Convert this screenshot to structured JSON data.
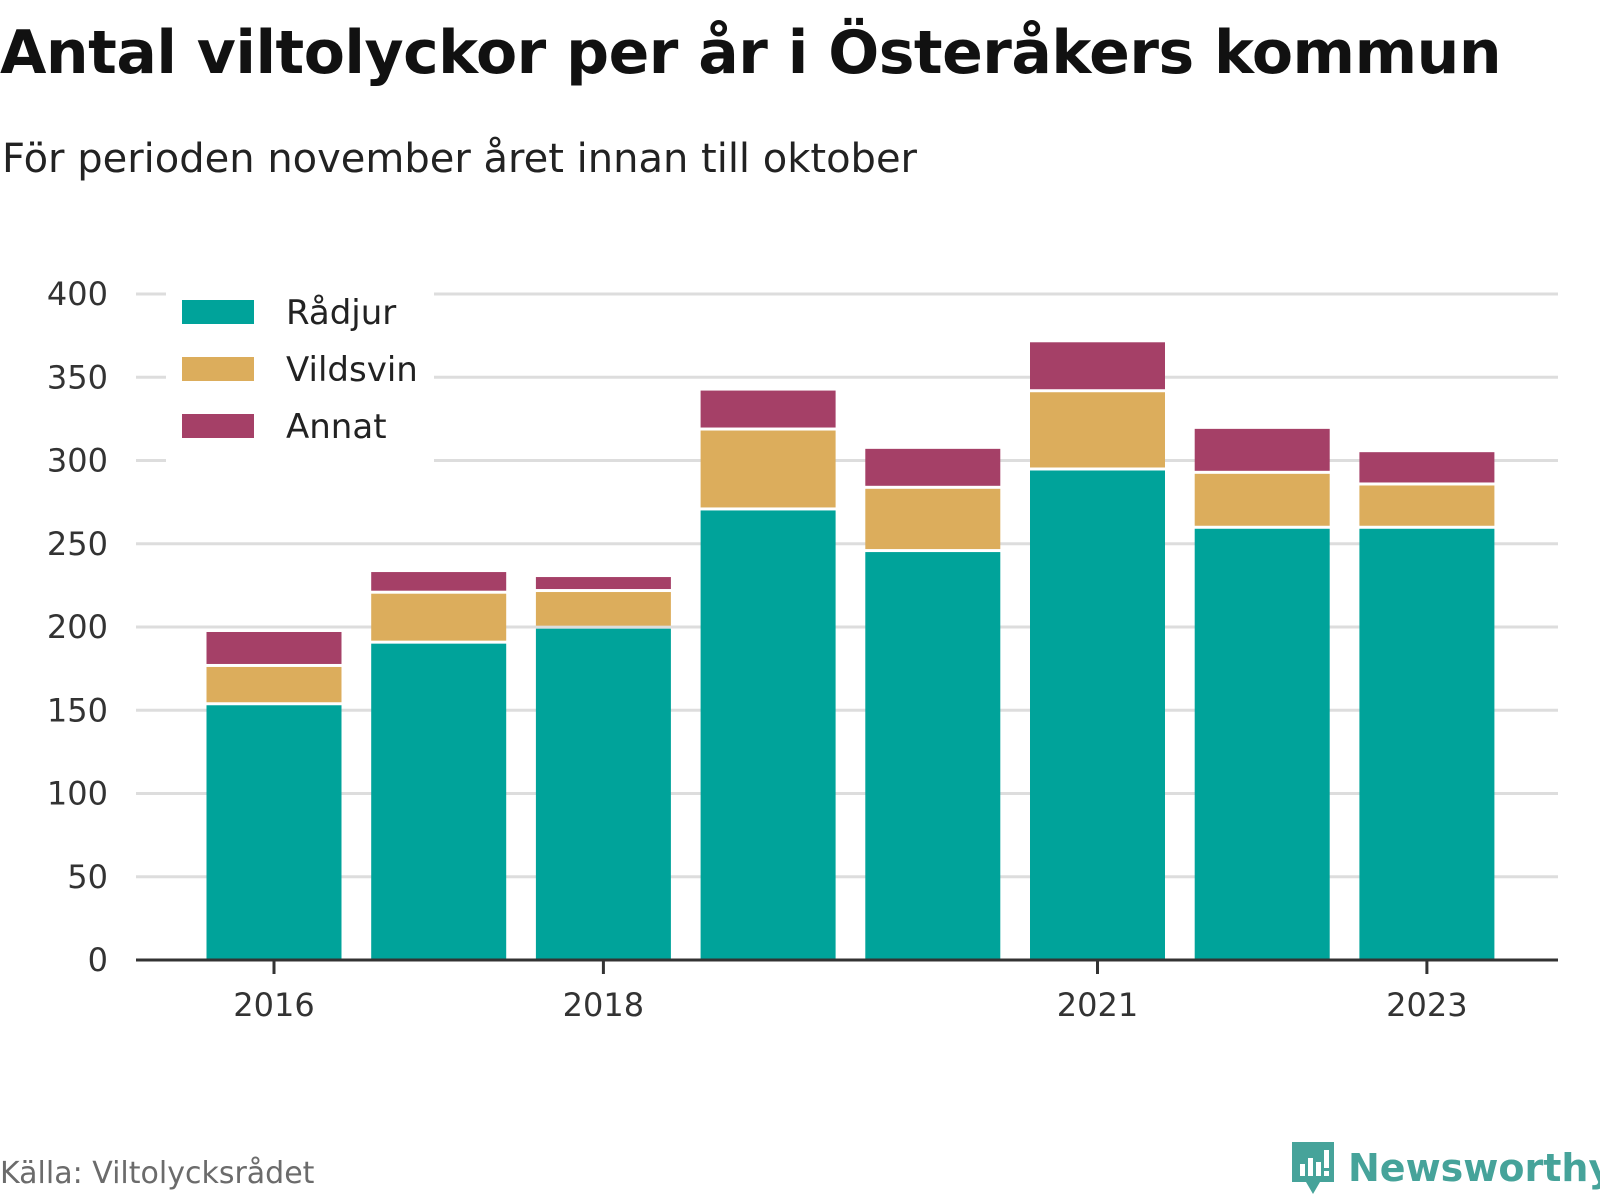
{
  "title": "Antal viltolyckor per år i Österåkers kommun",
  "subtitle": "För perioden november året innan till oktober",
  "source": "Källa: Viltolycksrådet",
  "brand": "Newsworthy",
  "colors": {
    "radjur": "#00a39a",
    "vildsvin": "#dcad5c",
    "annat": "#a54067",
    "grid": "#dddddd",
    "axis": "#333333"
  },
  "chart_data": {
    "type": "bar",
    "stacked": true,
    "categories": [
      "2016",
      "2017",
      "2018",
      "2019",
      "2020",
      "2021",
      "2022",
      "2023"
    ],
    "x_tick_labels": [
      "2016",
      "2018",
      "2021",
      "2023"
    ],
    "series": [
      {
        "name": "Rådjur",
        "color": "#00a39a",
        "values": [
          153,
          190,
          199,
          270,
          245,
          294,
          259,
          259
        ]
      },
      {
        "name": "Vildsvin",
        "color": "#dcad5c",
        "values": [
          23,
          30,
          22,
          48,
          38,
          47,
          33,
          26
        ]
      },
      {
        "name": "Annat",
        "color": "#a54067",
        "values": [
          21,
          13,
          9,
          24,
          24,
          30,
          27,
          20
        ]
      }
    ],
    "yticks": [
      0,
      50,
      100,
      150,
      200,
      250,
      300,
      350,
      400
    ],
    "ylim": [
      0,
      400
    ],
    "grid": true,
    "legend_position": "top-left"
  }
}
